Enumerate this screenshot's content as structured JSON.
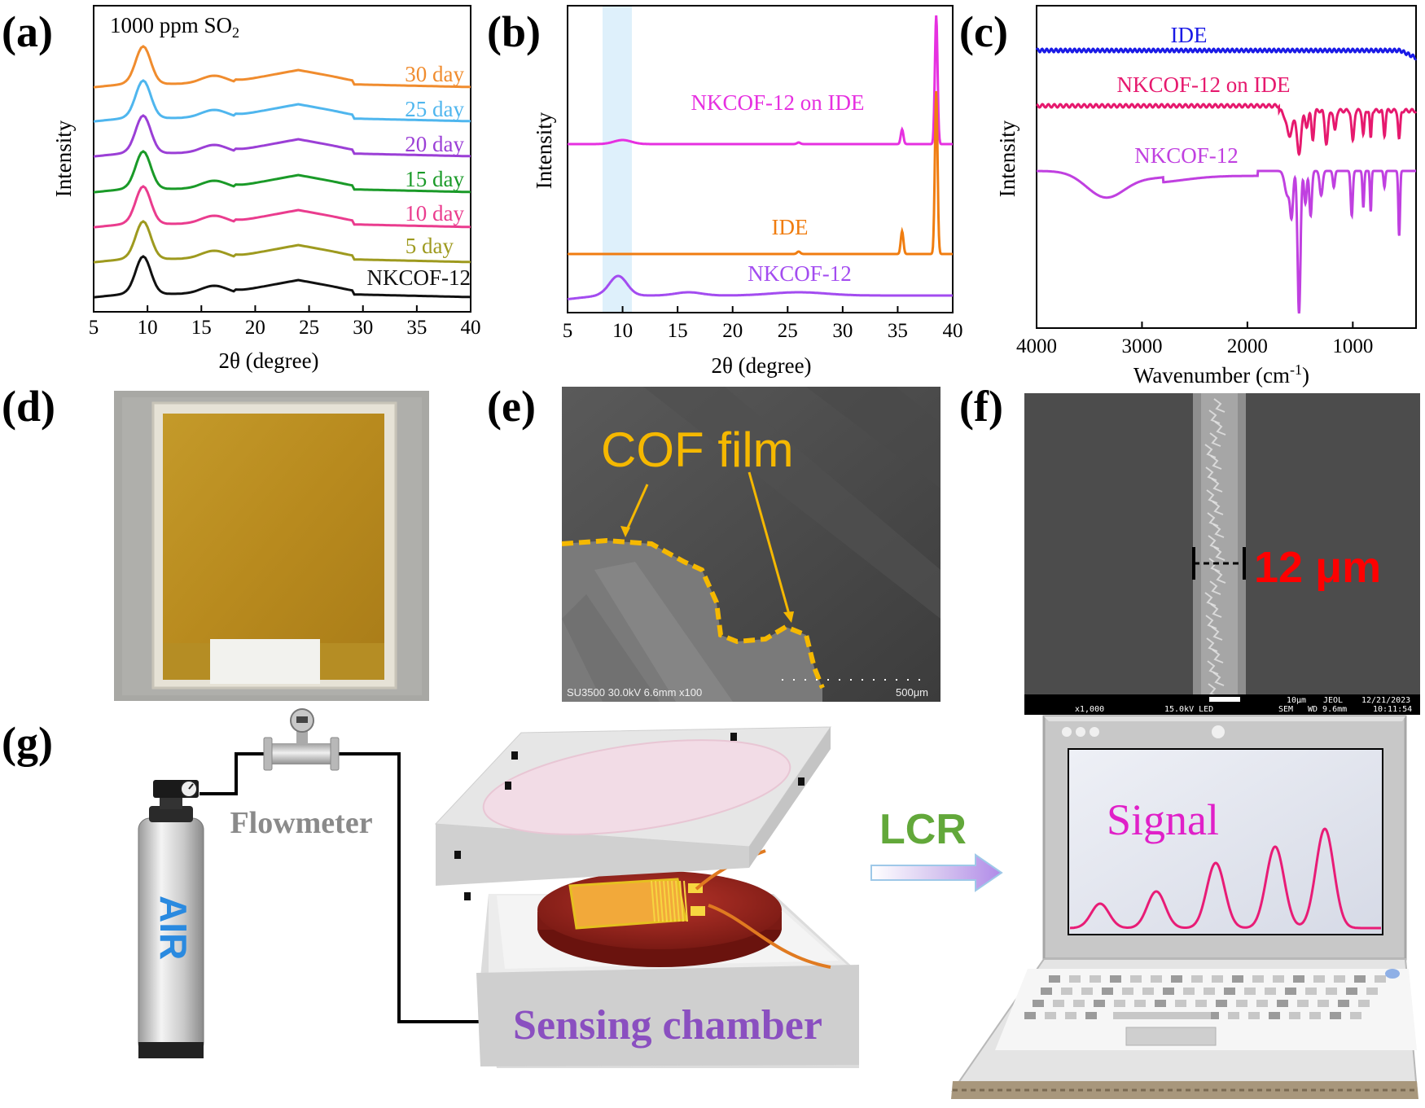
{
  "panel_labels": [
    "(a)",
    "(b)",
    "(c)",
    "(d)",
    "(e)",
    "(f)",
    "(g)"
  ],
  "panel_a": {
    "annotation_main": "1000 ppm  SO",
    "annotation_sub": "2",
    "ylabel": "Intensity",
    "xlabel": "2θ (degree)",
    "xticks": [
      "5",
      "10",
      "15",
      "20",
      "25",
      "30",
      "35",
      "40"
    ],
    "series": [
      {
        "name": "30 day",
        "color": "#f08c2e"
      },
      {
        "name": "25 day",
        "color": "#4fb6ee"
      },
      {
        "name": "20 day",
        "color": "#9b3fd6"
      },
      {
        "name": "15 day",
        "color": "#1a9a28"
      },
      {
        "name": "10 day",
        "color": "#ea3c8e"
      },
      {
        "name": "5 day",
        "color": "#9e9a1f"
      },
      {
        "name": "NKCOF-12",
        "color": "#111111"
      }
    ]
  },
  "panel_b": {
    "ylabel": "Intensity",
    "xlabel": "2θ (degree)",
    "xticks": [
      "5",
      "10",
      "15",
      "20",
      "25",
      "30",
      "35",
      "40"
    ],
    "series": [
      {
        "name": "NKCOF-12 on IDE",
        "color": "#e630e0"
      },
      {
        "name": "IDE",
        "color": "#f07d10"
      },
      {
        "name": "NKCOF-12",
        "color": "#a34cf0"
      }
    ]
  },
  "panel_c": {
    "ylabel": "Intensity",
    "xlabel_main": "Wavenumber (cm",
    "xlabel_sup": "-1",
    "xlabel_end": ")",
    "xticks": [
      "4000",
      "3000",
      "2000",
      "1000"
    ],
    "series": [
      {
        "name": "IDE",
        "color": "#1a1ae6"
      },
      {
        "name": "NKCOF-12 on IDE",
        "color": "#e6196e"
      },
      {
        "name": "NKCOF-12",
        "color": "#c040e0"
      }
    ]
  },
  "panel_e": {
    "annotation": "COF film",
    "sem_info": "SU3500 30.0kV 6.6mm x100",
    "scale_bar": "500μm"
  },
  "panel_f": {
    "width_label": "12 μm",
    "footer_scale": "10μm",
    "footer_brand": "JEOL",
    "footer_date": "12/21/2023",
    "footer_mag": "x1,000",
    "footer_kv": "15.0kV LED",
    "footer_mode": "SEM",
    "footer_wd": "WD 9.6mm",
    "footer_time": "10:11:54"
  },
  "panel_g": {
    "cylinder_label": "AIR",
    "flowmeter_label": "Flowmeter",
    "chamber_label": "Sensing chamber",
    "instrument_label": "LCR",
    "signal_label": "Signal"
  },
  "colors": {
    "cof_annotation": "#f5b800",
    "width_label": "#ff0000",
    "lcr_text": "#62a83a",
    "signal_text": "#e020c8",
    "chamber_text": "#8a4fc0",
    "cylinder_text": "#2a8ae0"
  }
}
